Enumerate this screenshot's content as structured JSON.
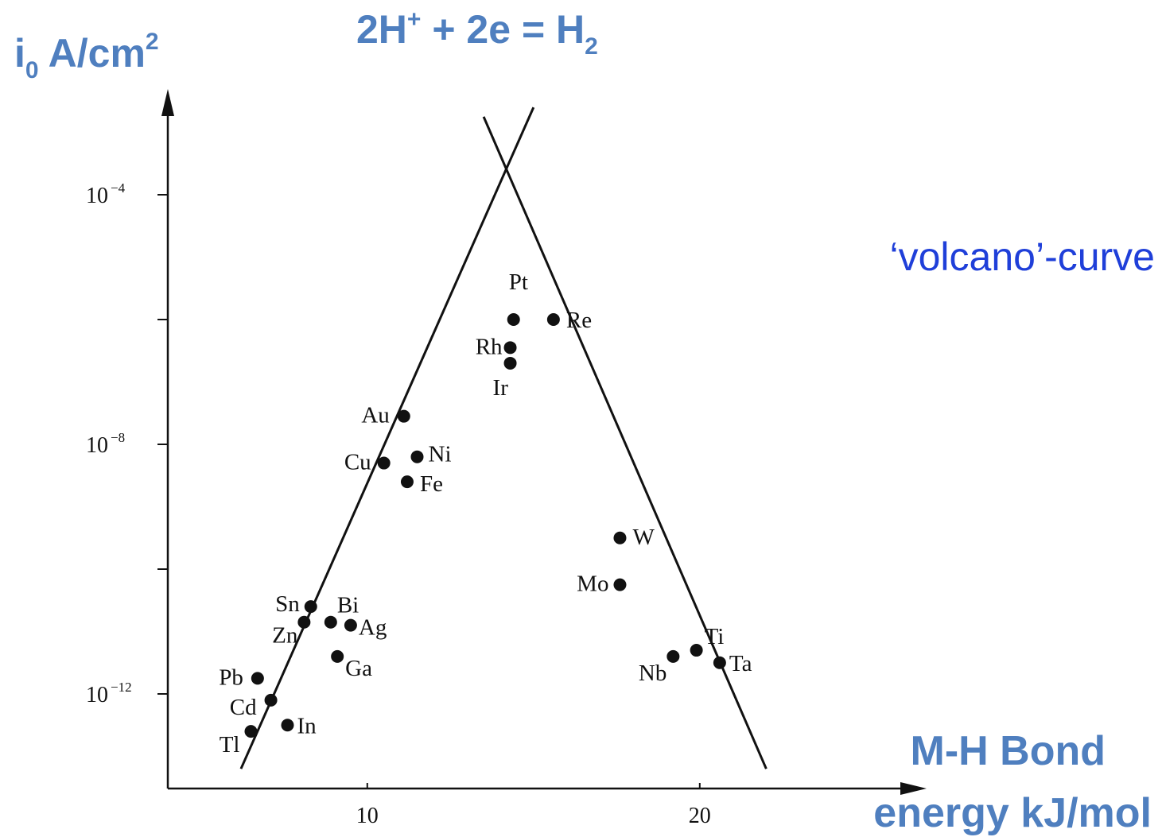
{
  "header": {
    "ylabel_main": "i",
    "ylabel_sub": "0",
    "ylabel_rest": " A/cm",
    "ylabel_sup": "2",
    "reaction_a": "2H",
    "reaction_a_sup": "+",
    "reaction_b": " + 2e = H",
    "reaction_b_sub": "2",
    "annotation": "‘volcano’-curve",
    "xlabel_line1": "M-H Bond",
    "xlabel_line2": "energy kJ/mol"
  },
  "chart_data": {
    "type": "scatter",
    "title": "2H+ + 2e = H2",
    "xlabel": "M-H Bond energy kJ/mol",
    "ylabel": "i0 A/cm2",
    "x_ticks": [
      "10",
      "20"
    ],
    "y_ticks": [
      {
        "base": "10",
        "exp": "−4",
        "log": -4
      },
      {
        "base": "10",
        "exp": "−8",
        "log": -8
      },
      {
        "base": "10",
        "exp": "−12",
        "log": -12
      }
    ],
    "y_scale": "log",
    "xlim": [
      4,
      26
    ],
    "ylim_log": [
      -13.5,
      -1.4
    ],
    "grid": false,
    "points": [
      {
        "label": "Pt",
        "x": 14.4,
        "log_y": -6.0
      },
      {
        "label": "Re",
        "x": 15.6,
        "log_y": -6.0
      },
      {
        "label": "Rh",
        "x": 14.3,
        "log_y": -6.45
      },
      {
        "label": "Ir",
        "x": 14.3,
        "log_y": -6.7
      },
      {
        "label": "Au",
        "x": 11.1,
        "log_y": -7.55
      },
      {
        "label": "Ni",
        "x": 11.5,
        "log_y": -8.2
      },
      {
        "label": "Cu",
        "x": 10.5,
        "log_y": -8.3
      },
      {
        "label": "Fe",
        "x": 11.2,
        "log_y": -8.6
      },
      {
        "label": "W",
        "x": 17.6,
        "log_y": -9.5
      },
      {
        "label": "Mo",
        "x": 17.6,
        "log_y": -10.25
      },
      {
        "label": "Sn",
        "x": 8.3,
        "log_y": -10.6
      },
      {
        "label": "Zn",
        "x": 8.1,
        "log_y": -10.85
      },
      {
        "label": "Bi",
        "x": 8.9,
        "log_y": -10.85
      },
      {
        "label": "Ag",
        "x": 9.5,
        "log_y": -10.9
      },
      {
        "label": "Ga",
        "x": 9.1,
        "log_y": -11.4
      },
      {
        "label": "Ti",
        "x": 19.9,
        "log_y": -11.3
      },
      {
        "label": "Ta",
        "x": 20.6,
        "log_y": -11.5
      },
      {
        "label": "Nb",
        "x": 19.2,
        "log_y": -11.4
      },
      {
        "label": "Pb",
        "x": 6.7,
        "log_y": -11.75
      },
      {
        "label": "Cd",
        "x": 7.1,
        "log_y": -12.1
      },
      {
        "label": "In",
        "x": 7.6,
        "log_y": -12.5
      },
      {
        "label": "Tl",
        "x": 6.5,
        "log_y": -12.6
      }
    ],
    "lines": [
      {
        "name": "",
        "points": [
          [
            6.2,
            -13.2
          ],
          [
            15.0,
            -2.6
          ]
        ]
      },
      {
        "name": "",
        "points": [
          [
            13.5,
            -2.75
          ],
          [
            22.0,
            -13.2
          ]
        ]
      }
    ]
  }
}
